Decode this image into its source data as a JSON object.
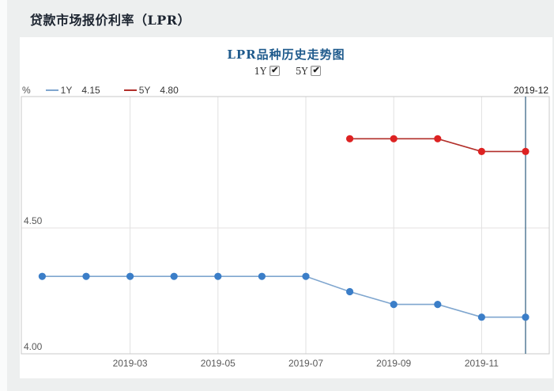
{
  "page": {
    "title": "贷款市场报价利率（LPR）"
  },
  "chart": {
    "title": "LPR品种历史走势图",
    "controls": [
      {
        "label": "1Y",
        "checked": true
      },
      {
        "label": "5Y",
        "checked": true
      }
    ],
    "unit_label": "%",
    "legend": [
      {
        "name": "1Y",
        "value": "4.15"
      },
      {
        "name": "5Y",
        "value": "4.80"
      }
    ],
    "current_period": "2019-12"
  },
  "chart_data": {
    "type": "line",
    "title": "LPR品种历史走势图",
    "x": [
      "2019-01",
      "2019-02",
      "2019-03",
      "2019-04",
      "2019-05",
      "2019-06",
      "2019-07",
      "2019-08",
      "2019-09",
      "2019-10",
      "2019-11",
      "2019-12"
    ],
    "x_tick_labels": [
      "2019-03",
      "2019-05",
      "2019-07",
      "2019-09",
      "2019-11"
    ],
    "y_ticks": [
      {
        "value": 4.5,
        "label": "4.50"
      },
      {
        "value": 4.0,
        "label": "4.00"
      }
    ],
    "ylim": [
      4.0,
      5.02
    ],
    "grid": true,
    "legend_position": "top-left",
    "ylabel": "%",
    "xlabel": "",
    "highlight_x": "2019-12",
    "highlight_color": "#4a7390",
    "series": [
      {
        "name": "1Y",
        "values": [
          4.31,
          4.31,
          4.31,
          4.31,
          4.31,
          4.31,
          4.31,
          4.25,
          4.2,
          4.2,
          4.15,
          4.15
        ],
        "line_color": "#7fa6cf",
        "dot_color": "#3b7ec8"
      },
      {
        "name": "5Y",
        "values": [
          null,
          null,
          null,
          null,
          null,
          null,
          null,
          4.85,
          4.85,
          4.85,
          4.8,
          4.8
        ],
        "line_color": "#b22f2a",
        "dot_color": "#dd2222"
      }
    ]
  }
}
